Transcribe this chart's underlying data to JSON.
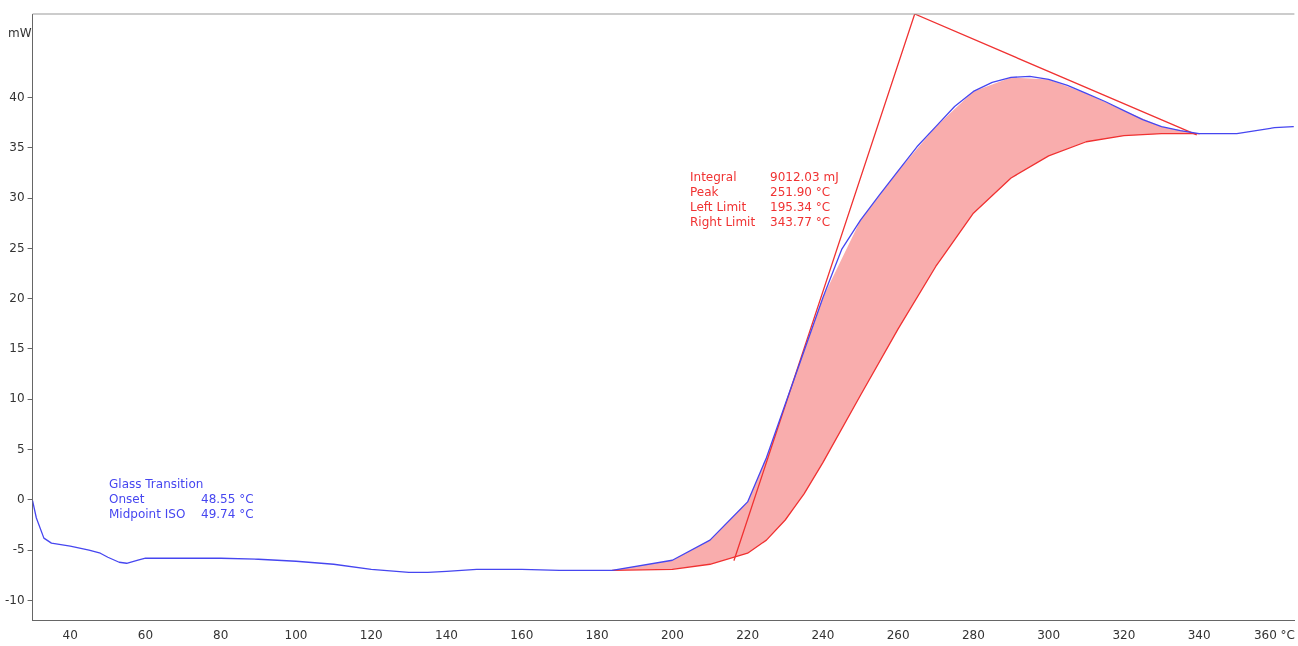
{
  "chart_data": {
    "type": "line",
    "ylabel": "mW",
    "xlim": [
      30,
      365.3
    ],
    "ylim": [
      -12,
      48.3
    ],
    "xticks": [
      40,
      60,
      80,
      100,
      120,
      140,
      160,
      180,
      200,
      220,
      240,
      260,
      280,
      300,
      320,
      340,
      {
        "value": 360,
        "label": "360 °C"
      }
    ],
    "yticks": [
      -10,
      -5,
      0,
      5,
      10,
      15,
      20,
      25,
      30,
      35,
      40
    ],
    "grid": false,
    "legend": false,
    "marker": "none",
    "line_style": "solid",
    "series": [
      {
        "color": "#4646f0",
        "x": [
          30,
          31,
          33,
          35,
          40,
          45,
          48,
          50,
          53,
          55,
          58,
          60,
          65,
          80,
          90,
          100,
          110,
          120,
          130,
          135,
          140,
          148,
          160,
          170,
          184,
          200,
          210,
          220,
          225,
          230,
          235,
          240,
          245,
          250,
          255,
          260,
          265,
          270,
          275,
          280,
          285,
          290,
          295,
          300,
          305,
          310,
          315,
          320,
          325,
          330,
          335,
          340,
          350,
          360,
          365
        ],
        "values": [
          -0.1,
          -1.8,
          -3.8,
          -4.3,
          -4.6,
          -5.0,
          -5.3,
          -5.7,
          -6.2,
          -6.3,
          -6.0,
          -5.8,
          -5.8,
          -5.8,
          -5.9,
          -6.1,
          -6.4,
          -6.9,
          -7.2,
          -7.2,
          -7.1,
          -6.9,
          -6.9,
          -7.0,
          -7.0,
          -6.0,
          -4.0,
          -0.2,
          4.2,
          9.5,
          14.8,
          20.1,
          24.9,
          27.8,
          30.3,
          32.7,
          35.1,
          37.1,
          39.1,
          40.6,
          41.5,
          42.0,
          42.1,
          41.8,
          41.2,
          40.4,
          39.6,
          38.7,
          37.8,
          37.1,
          36.7,
          36.4,
          36.4,
          37.0,
          37.1
        ]
      },
      {
        "color": "#f03232",
        "x": [
          184,
          200,
          210,
          220,
          225,
          230,
          235,
          240,
          250,
          260,
          270,
          280,
          290,
          300,
          310,
          320,
          330,
          340
        ],
        "values": [
          -7.0,
          -6.9,
          -6.4,
          -5.3,
          -4.0,
          -2.0,
          0.6,
          3.7,
          10.4,
          17.0,
          23.2,
          28.5,
          32.0,
          34.2,
          35.6,
          36.2,
          36.4,
          36.4
        ],
        "lower": [
          -7.0,
          -6.9,
          -6.4,
          -5.3,
          -4.0,
          -2.0,
          0.6,
          3.7,
          10.4,
          17.0,
          23.2,
          28.5,
          32.0,
          34.2,
          35.6,
          36.2,
          36.4,
          36.4
        ],
        "upper": [
          -7.0,
          -6.0,
          -4.0,
          -0.2,
          4.2,
          9.5,
          14.8,
          20.1,
          27.8,
          32.7,
          37.1,
          40.6,
          42.0,
          41.8,
          40.4,
          38.7,
          37.1,
          36.4
        ]
      },
      {
        "color": "#f03232",
        "x": [
          216.4,
          264.4,
          339.2
        ],
        "values": [
          -6.0,
          48.3,
          36.3
        ]
      }
    ],
    "annotations": [
      "Glass Transition",
      "Onset        48.55 °C",
      "Midpoint ISO  49.74 °C",
      "Integral      9012.03 mJ",
      "Peak          251.90 °C",
      "Left Limit    195.34 °C",
      "Right Limit   343.77 °C"
    ]
  }
}
